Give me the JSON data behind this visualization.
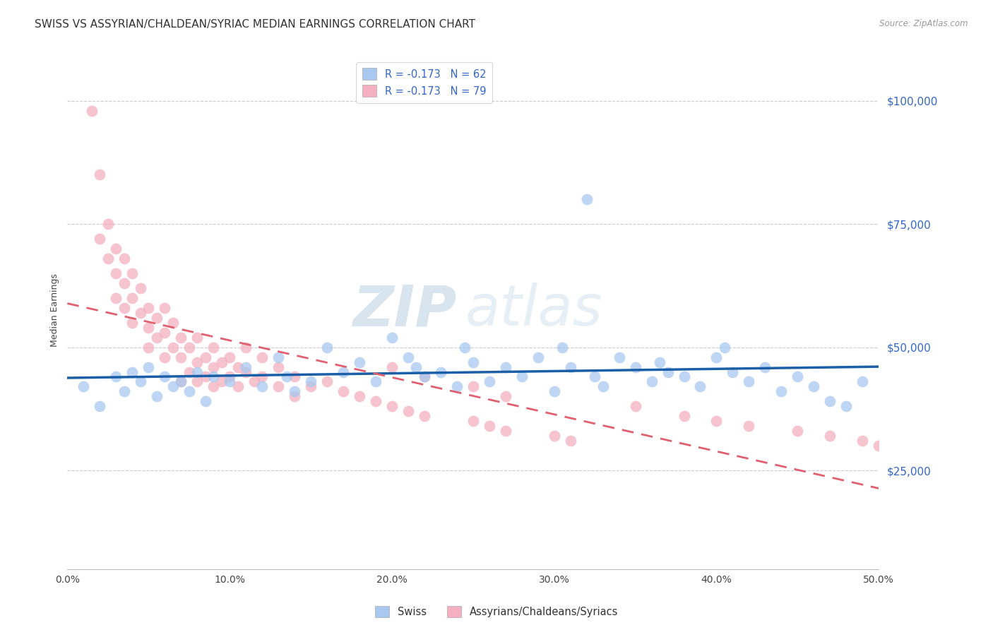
{
  "title": "SWISS VS ASSYRIAN/CHALDEAN/SYRIAC MEDIAN EARNINGS CORRELATION CHART",
  "source_text": "Source: ZipAtlas.com",
  "ylabel": "Median Earnings",
  "xlabel_ticks": [
    "0.0%",
    "10.0%",
    "20.0%",
    "30.0%",
    "40.0%",
    "50.0%"
  ],
  "xlabel_values": [
    0.0,
    0.1,
    0.2,
    0.3,
    0.4,
    0.5
  ],
  "ylabel_ticks": [
    "$25,000",
    "$50,000",
    "$75,000",
    "$100,000"
  ],
  "ylabel_values": [
    25000,
    50000,
    75000,
    100000
  ],
  "xmin": 0.0,
  "xmax": 0.5,
  "ymin": 5000,
  "ymax": 110000,
  "swiss_R": -0.173,
  "swiss_N": 62,
  "acs_R": -0.173,
  "acs_N": 79,
  "swiss_color": "#a8c8f0",
  "acs_color": "#f4b0c0",
  "swiss_line_color": "#1a5fa8",
  "acs_line_color": "#e06070",
  "watermark_zip": "ZIP",
  "watermark_atlas": "atlas",
  "legend_label_swiss": "Swiss",
  "legend_label_acs": "Assyrians/Chaldeans/Syriacs",
  "title_fontsize": 11,
  "axis_label_fontsize": 9,
  "tick_fontsize": 10,
  "swiss_seed": 101,
  "acs_seed": 202,
  "swiss_x": [
    0.01,
    0.02,
    0.03,
    0.035,
    0.04,
    0.045,
    0.05,
    0.055,
    0.06,
    0.065,
    0.07,
    0.075,
    0.08,
    0.085,
    0.09,
    0.1,
    0.11,
    0.12,
    0.13,
    0.135,
    0.14,
    0.15,
    0.16,
    0.17,
    0.18,
    0.19,
    0.2,
    0.21,
    0.215,
    0.22,
    0.23,
    0.24,
    0.245,
    0.25,
    0.26,
    0.27,
    0.28,
    0.29,
    0.3,
    0.305,
    0.31,
    0.32,
    0.325,
    0.33,
    0.34,
    0.35,
    0.36,
    0.365,
    0.37,
    0.38,
    0.39,
    0.4,
    0.405,
    0.41,
    0.42,
    0.43,
    0.44,
    0.45,
    0.46,
    0.47,
    0.48,
    0.49
  ],
  "swiss_y": [
    42000,
    38000,
    44000,
    41000,
    45000,
    43000,
    46000,
    40000,
    44000,
    42000,
    43000,
    41000,
    45000,
    39000,
    44000,
    43000,
    46000,
    42000,
    48000,
    44000,
    41000,
    43000,
    50000,
    45000,
    47000,
    43000,
    52000,
    48000,
    46000,
    44000,
    45000,
    42000,
    50000,
    47000,
    43000,
    46000,
    44000,
    48000,
    41000,
    50000,
    46000,
    80000,
    44000,
    42000,
    48000,
    46000,
    43000,
    47000,
    45000,
    44000,
    42000,
    48000,
    50000,
    45000,
    43000,
    46000,
    41000,
    44000,
    42000,
    39000,
    38000,
    43000
  ],
  "acs_x": [
    0.015,
    0.02,
    0.02,
    0.025,
    0.025,
    0.03,
    0.03,
    0.03,
    0.035,
    0.035,
    0.035,
    0.04,
    0.04,
    0.04,
    0.045,
    0.045,
    0.05,
    0.05,
    0.05,
    0.055,
    0.055,
    0.06,
    0.06,
    0.06,
    0.065,
    0.065,
    0.07,
    0.07,
    0.07,
    0.075,
    0.075,
    0.08,
    0.08,
    0.08,
    0.085,
    0.085,
    0.09,
    0.09,
    0.09,
    0.095,
    0.095,
    0.1,
    0.1,
    0.105,
    0.105,
    0.11,
    0.11,
    0.115,
    0.12,
    0.12,
    0.13,
    0.13,
    0.14,
    0.14,
    0.15,
    0.16,
    0.17,
    0.18,
    0.19,
    0.2,
    0.21,
    0.22,
    0.25,
    0.26,
    0.27,
    0.3,
    0.31,
    0.35,
    0.38,
    0.4,
    0.42,
    0.45,
    0.47,
    0.49,
    0.5,
    0.2,
    0.22,
    0.25,
    0.27
  ],
  "acs_y": [
    98000,
    85000,
    72000,
    75000,
    68000,
    70000,
    65000,
    60000,
    68000,
    63000,
    58000,
    65000,
    60000,
    55000,
    62000,
    57000,
    58000,
    54000,
    50000,
    56000,
    52000,
    58000,
    53000,
    48000,
    55000,
    50000,
    52000,
    48000,
    43000,
    50000,
    45000,
    52000,
    47000,
    43000,
    48000,
    44000,
    50000,
    46000,
    42000,
    47000,
    43000,
    48000,
    44000,
    46000,
    42000,
    50000,
    45000,
    43000,
    48000,
    44000,
    46000,
    42000,
    44000,
    40000,
    42000,
    43000,
    41000,
    40000,
    39000,
    38000,
    37000,
    36000,
    35000,
    34000,
    33000,
    32000,
    31000,
    38000,
    36000,
    35000,
    34000,
    33000,
    32000,
    31000,
    30000,
    46000,
    44000,
    42000,
    40000
  ]
}
